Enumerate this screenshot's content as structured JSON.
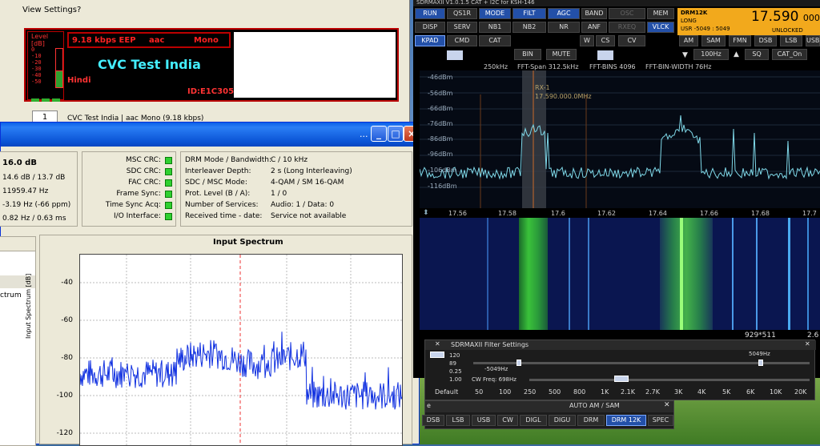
{
  "drm_main": {
    "menu": [
      "View",
      "Settings",
      "?"
    ],
    "level_title": "Level [dB]",
    "level_scale": [
      "0",
      "-10",
      "-20",
      "-30",
      "-40",
      "-50"
    ],
    "level_fraction": 0.45,
    "bitrate": "9.18 kbps EEP",
    "codec": "aac",
    "audio_mode": "Mono",
    "station": "CVC Test India",
    "language": "Hindi",
    "id": "ID:E1C305",
    "service_number": "1",
    "service_label": "CVC Test India  |  aac Mono (9.18 kbps)"
  },
  "eval": {
    "window_controls": [
      "...",
      "_",
      "□",
      "×"
    ],
    "snr": "16.0 dB",
    "mer": "14.6 dB / 13.7 dB",
    "sample_offset": "11959.47 Hz",
    "freq_offset": "-3.19 Hz (-66 ppm)",
    "doppler": "0.82 Hz / 0.63 ms",
    "crc_labels": [
      "MSC CRC:",
      "SDC CRC:",
      "FAC CRC:",
      "Frame Sync:",
      "Time Sync Acq:",
      "I/O Interface:"
    ],
    "params": [
      {
        "k": "DRM Mode / Bandwidth:",
        "v": "C / 10 kHz"
      },
      {
        "k": "Interleaver Depth:",
        "v": "2 s (Long Interleaving)"
      },
      {
        "k": "SDC / MSC Mode:",
        "v": "4-QAM / SM 16-QAM"
      },
      {
        "k": "Prot. Level (B / A):",
        "v": "1 / 0"
      },
      {
        "k": "Number of Services:",
        "v": "Audio: 1 / Data: 0"
      },
      {
        "k": "Received time - date:",
        "v": "Service not available"
      }
    ],
    "left_list": [
      "ctrum"
    ],
    "spectrum_title": "Input Spectrum",
    "yaxis_label": "Input Spectrum [dB]",
    "chart_data": {
      "type": "line",
      "title": "Input Spectrum",
      "ylabel": "Input Spectrum [dB]",
      "ylim": [
        -125,
        -20
      ],
      "yticks": [
        -40,
        -60,
        -80,
        -100,
        -120
      ],
      "series": [
        {
          "segments": [
            {
              "x0": 0,
              "x1": 0.3,
              "level": -85
            },
            {
              "x0": 0.3,
              "x1": 0.7,
              "level": -77
            },
            {
              "x0": 0.7,
              "x1": 1.0,
              "level": -97
            }
          ]
        }
      ]
    }
  },
  "sdr": {
    "title": "SDRMAXII V1.0.1.5   CAT + I2C for KSH-146",
    "row1": [
      "RUN",
      "QS1R",
      "MODE",
      "FILT",
      "AGC",
      "BAND",
      "OSC",
      "MEM"
    ],
    "row2": [
      "DISP",
      "SERV",
      "NB1",
      "NB2",
      "NR",
      "ANF",
      "RXEQ",
      "VLCK"
    ],
    "row3": [
      "KPAD",
      "CMD",
      "CAT",
      "W",
      "CS",
      "CV"
    ],
    "mode_row": [
      "AM",
      "SAM",
      "FMN",
      "DSB",
      "LSB",
      "USB"
    ],
    "row4": [
      "BIN",
      "MUTE",
      "100Hz",
      "SQ",
      "CAT_On"
    ],
    "mode_name": "DRM12K",
    "submode": "LONG",
    "usr": "USR -5049 : 5049",
    "frequency": "17.590",
    "frequency_tail": "000.",
    "lock_status": "UNLOCKED",
    "fft_info": [
      "250kHz",
      "FFT-Span 312.5kHz",
      "FFT-BINS 4096",
      "FFT-BIN-WIDTH 76Hz"
    ],
    "db_labels": [
      "-46dBm",
      "-56dBm",
      "-66dBm",
      "-76dBm",
      "-86dBm",
      "-96dBm",
      "-106dBm",
      "-116dBm"
    ],
    "rx_label": "RX-1",
    "rx_freq": "17.590.000.0MHz",
    "x_labels": [
      "17.56",
      "17.58",
      "17.6",
      "17.62",
      "17.64",
      "17.66",
      "17.68",
      "17.7"
    ],
    "size_readout": "929*511",
    "size_tail": "2.6"
  },
  "filter": {
    "title": "SDRMAXII Filter Settings",
    "val1": "120",
    "val2": "89",
    "val3": "0.25",
    "val4": "1.00",
    "high": "5049Hz",
    "low": "-5049Hz",
    "cw": "CW Freq: 698Hz",
    "bw": [
      "Default",
      "50",
      "100",
      "250",
      "500",
      "800",
      "1K",
      "2.1K",
      "2.7K",
      "3K",
      "4K",
      "5K",
      "6K",
      "10K",
      "20K"
    ]
  },
  "am": {
    "title": "AUTO AM / SAM",
    "title_prefix": "e",
    "buttons": [
      "DSB",
      "LSB",
      "USB",
      "CW",
      "DIGL",
      "DIGU",
      "DRM",
      "DRM 12K",
      "SPEC"
    ]
  }
}
